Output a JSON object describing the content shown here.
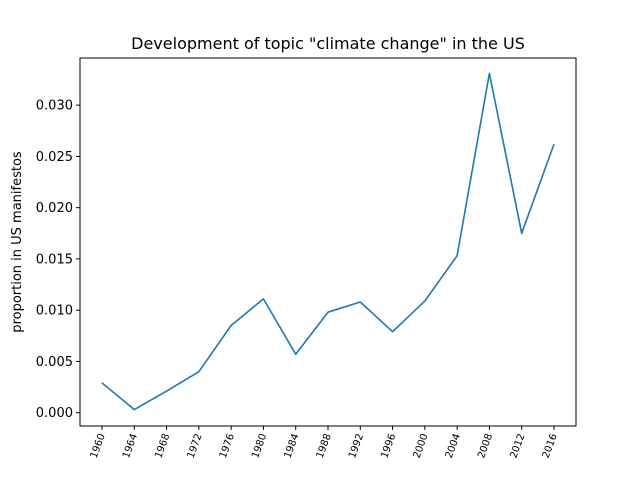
{
  "chart_data": {
    "type": "line",
    "title": "Development of topic \"climate change\" in the US",
    "xlabel": "",
    "ylabel": "proportion in US manifestos",
    "categories": [
      "1960",
      "1964",
      "1968",
      "1972",
      "1976",
      "1980",
      "1984",
      "1988",
      "1992",
      "1996",
      "2000",
      "2004",
      "2008",
      "2012",
      "2016"
    ],
    "series": [
      {
        "values": [
          0.0029,
          0.0003,
          0.0021,
          0.004,
          0.0085,
          0.0111,
          0.0057,
          0.0098,
          0.0108,
          0.0079,
          0.0109,
          0.0153,
          0.0331,
          0.0175,
          0.0262
        ],
        "color": "#1f77b4"
      }
    ],
    "ylim": [
      -0.0013,
      0.0346
    ],
    "yticks": [
      "0.000",
      "0.005",
      "0.010",
      "0.015",
      "0.020",
      "0.025",
      "0.030"
    ],
    "grid": false,
    "legend": "none",
    "x_tick_rotation": "vertical-slant"
  }
}
